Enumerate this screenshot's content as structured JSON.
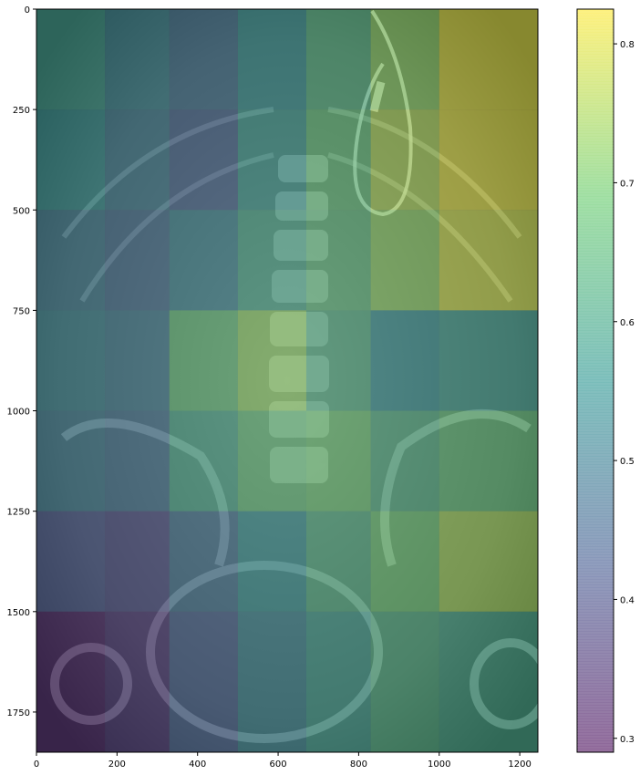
{
  "chart_data": {
    "type": "heatmap",
    "title": "",
    "xlabel": "",
    "ylabel": "",
    "xlim": [
      0,
      1245
    ],
    "ylim": [
      1850,
      0
    ],
    "xticks": [
      0,
      200,
      400,
      600,
      800,
      1000,
      1200
    ],
    "xtick_labels": [
      "0",
      "200",
      "400",
      "600",
      "800",
      "1000",
      "1200"
    ],
    "yticks": [
      0,
      250,
      500,
      750,
      1000,
      1250,
      1500,
      1750
    ],
    "ytick_labels": [
      "0",
      "250",
      "500",
      "750",
      "1000",
      "1250",
      "1500",
      "1750"
    ],
    "background": "grayscale abdominal x-ray",
    "overlay_alpha": 0.5,
    "colormap": "viridis",
    "colorbar": {
      "range": [
        0.29,
        0.825
      ],
      "ticks": [
        0.3,
        0.4,
        0.5,
        0.6,
        0.7,
        0.8
      ],
      "tick_labels": [
        "0.3",
        "0.4",
        "0.5",
        "0.6",
        "0.7",
        "0.8"
      ],
      "colormap_stops": [
        "#440154",
        "#3b528b",
        "#21918c",
        "#5ec962",
        "#fde725"
      ]
    },
    "grid": {
      "x_edges": [
        0,
        170,
        330,
        500,
        670,
        830,
        1000,
        1245
      ],
      "y_edges": [
        0,
        250,
        500,
        750,
        1000,
        1250,
        1500,
        1850
      ],
      "values": [
        [
          0.58,
          0.52,
          0.48,
          0.55,
          0.63,
          0.72,
          0.8
        ],
        [
          0.55,
          0.5,
          0.45,
          0.57,
          0.66,
          0.75,
          0.8
        ],
        [
          0.5,
          0.47,
          0.52,
          0.6,
          0.65,
          0.72,
          0.78
        ],
        [
          0.52,
          0.5,
          0.66,
          0.72,
          0.62,
          0.55,
          0.58
        ],
        [
          0.5,
          0.48,
          0.6,
          0.66,
          0.68,
          0.62,
          0.66
        ],
        [
          0.42,
          0.4,
          0.48,
          0.55,
          0.62,
          0.68,
          0.74
        ],
        [
          0.33,
          0.36,
          0.44,
          0.52,
          0.58,
          0.62,
          0.6
        ]
      ]
    }
  }
}
